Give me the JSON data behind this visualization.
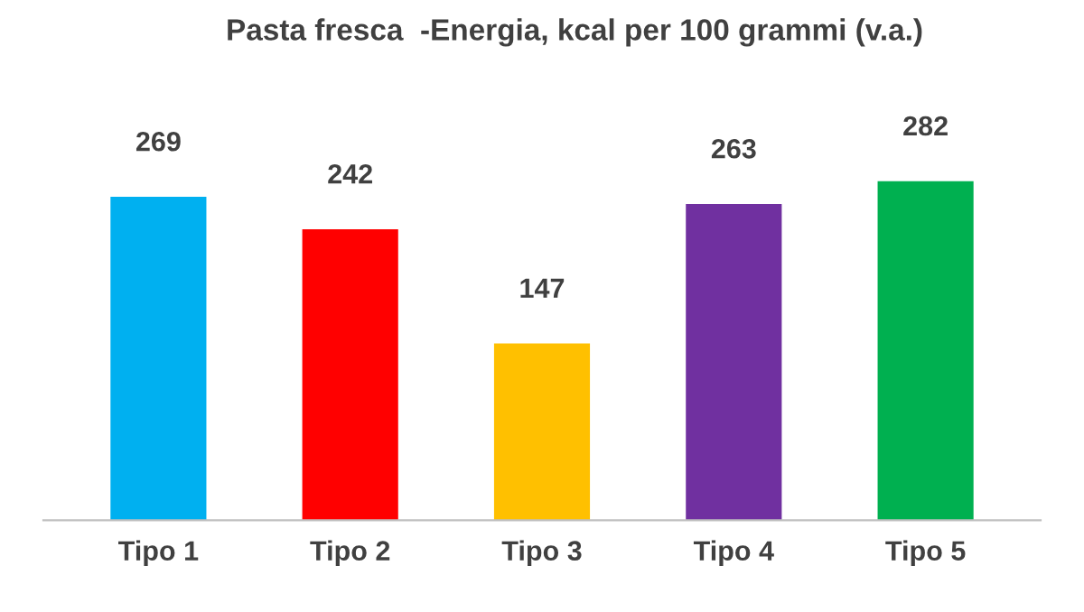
{
  "chart_data": {
    "type": "bar",
    "title": "Pasta fresca  -Energia, kcal per 100 grammi (v.a.)",
    "categories": [
      "Tipo 1",
      "Tipo 2",
      "Tipo 3",
      "Tipo 4",
      "Tipo 5"
    ],
    "values": [
      269,
      242,
      147,
      263,
      282
    ],
    "colors": [
      "#00b0f0",
      "#ff0000",
      "#ffc000",
      "#7030a0",
      "#00b050"
    ],
    "data_labels": true
  }
}
